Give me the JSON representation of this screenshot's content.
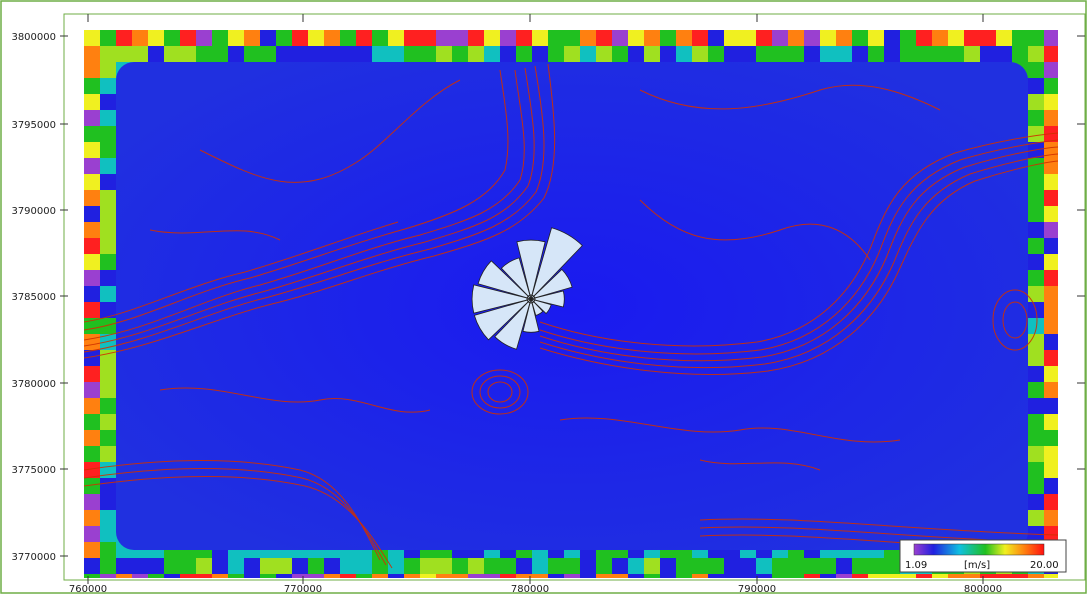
{
  "map": {
    "x_ticks": [
      "760000",
      "770000",
      "780000",
      "790000",
      "800000"
    ],
    "y_ticks": [
      "3800000",
      "3795000",
      "3790000",
      "3785000",
      "3780000",
      "3775000",
      "3770000"
    ],
    "legend": {
      "min": "1.09",
      "unit": "[m/s]",
      "max": "20.00"
    },
    "colors": {
      "low": "#1010e0",
      "mid": "#20c020",
      "high": "#ff2020",
      "contour": "#d03000",
      "rose_fill": "#d6e6f8"
    },
    "wind_rose_sectors": [
      0.62,
      0.78,
      0.45,
      0.35,
      0.22,
      0.18,
      0.35,
      0.55,
      0.62,
      0.62,
      0.58,
      0.45
    ]
  }
}
